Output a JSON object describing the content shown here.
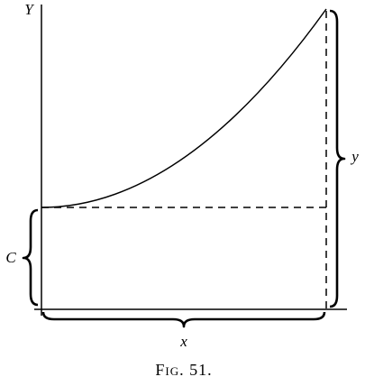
{
  "labels": {
    "y_axis": "Y",
    "constant": "C",
    "x_span": "x",
    "y_span": "y"
  },
  "caption": "Fig. 51."
}
